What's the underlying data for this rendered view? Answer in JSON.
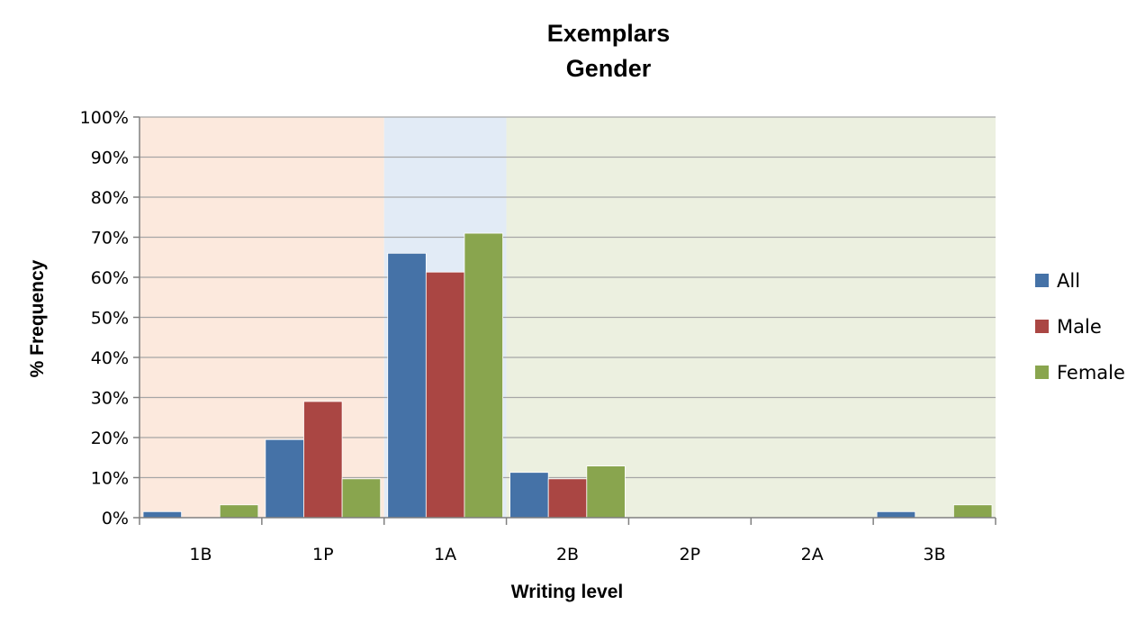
{
  "chart_data": {
    "type": "bar",
    "title": "Exemplars",
    "subtitle": "Gender",
    "xlabel": "Writing level",
    "ylabel": "% Frequency",
    "categories": [
      "1B",
      "1P",
      "1A",
      "2B",
      "2P",
      "2A",
      "3B"
    ],
    "series": [
      {
        "name": "All",
        "color": "#4572A7",
        "values": [
          1.5,
          19.5,
          66,
          11.3,
          0,
          0,
          1.5
        ]
      },
      {
        "name": "Male",
        "color": "#AA4643",
        "values": [
          0,
          29,
          61.3,
          9.7,
          0,
          0,
          0
        ]
      },
      {
        "name": "Female",
        "color": "#89A54E",
        "values": [
          3.2,
          9.7,
          71,
          12.9,
          0,
          0,
          3.2
        ]
      }
    ],
    "ylim": [
      0,
      100
    ],
    "yticks": [
      0,
      10,
      20,
      30,
      40,
      50,
      60,
      70,
      80,
      90,
      100
    ],
    "ytick_labels": [
      "0%",
      "10%",
      "20%",
      "30%",
      "40%",
      "50%",
      "60%",
      "70%",
      "80%",
      "90%",
      "100%"
    ],
    "grid": true,
    "legend_position": "right",
    "background_bands": [
      {
        "from_category": "1B",
        "to_category": "1P",
        "color": "#FCE9DD"
      },
      {
        "from_category": "1A",
        "to_category": "1A",
        "color": "#E2EBF6"
      },
      {
        "from_category": "2B",
        "to_category": "3B",
        "color": "#ECF0E0"
      }
    ]
  }
}
